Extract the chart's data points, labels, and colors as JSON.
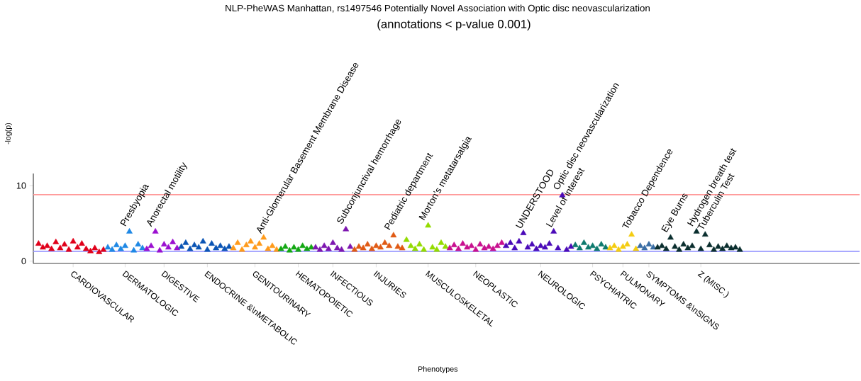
{
  "chart_data": {
    "type": "scatter",
    "title": "NLP-PheWAS Manhattan, rs1497546 Potentially Novel Association with Optic disc neovascularization",
    "subtitle": "(annotations < p-value 0.001)",
    "xlabel": "Phenotypes",
    "ylabel": "-log(p)",
    "marker": "triangle",
    "grid": false,
    "ylim": [
      -0.3,
      11.6
    ],
    "yticks": [
      0,
      10
    ],
    "categories": [
      null,
      null,
      null,
      null,
      null,
      null,
      null,
      null,
      "CARDIOVASCULAR",
      null,
      null,
      null,
      null,
      null,
      null,
      null,
      null,
      null,
      null,
      null,
      "DERMATOLOGIC",
      null,
      null,
      null,
      null,
      null,
      null,
      null,
      null,
      "DIGESTIVE",
      null,
      null,
      null,
      null,
      null,
      null,
      null,
      null,
      null,
      "ENDOCRINE &\\nMETABOLIC",
      null,
      null,
      null,
      null,
      null,
      null,
      null,
      null,
      null,
      null,
      "GENITOURINARY",
      null,
      null,
      null,
      null,
      null,
      null,
      null,
      null,
      null,
      "HEMATOPOIETIC",
      null,
      null,
      null,
      null,
      null,
      null,
      null,
      "INFECTIOUS",
      null,
      null,
      null,
      null,
      null,
      null,
      null,
      null,
      null,
      "INJURIES",
      null,
      null,
      null,
      null,
      null,
      null,
      null,
      null,
      null,
      null,
      null,
      "MUSCULOSKELETAL",
      null,
      null,
      null,
      null,
      null,
      null,
      null,
      null,
      null,
      null,
      "NEOPLASTIC",
      null,
      null,
      null,
      null,
      null,
      null,
      null,
      null,
      null,
      null,
      null,
      null,
      null,
      null,
      "NEUROLOGIC",
      null,
      null,
      null,
      null,
      null,
      null,
      null,
      null,
      null,
      null,
      null,
      "PSYCHIATRIC",
      null,
      null,
      null,
      null,
      null,
      null,
      "PULMONARY",
      null,
      null,
      null,
      null,
      null,
      "SYMPTOMS &\\nSIGNS",
      null,
      null,
      null,
      null,
      null,
      null,
      null,
      null,
      null,
      null,
      null,
      "Z (MISC.)",
      null,
      null,
      null,
      null,
      null,
      null,
      null,
      null,
      null
    ],
    "ref_lines": [
      {
        "axis": "y",
        "value": 8.8,
        "color": "#ff9999"
      },
      {
        "axis": "y",
        "value": 1.3,
        "color": "#9999ff"
      }
    ],
    "values": [
      2.3,
      1.8,
      2.0,
      1.6,
      2.5,
      1.7,
      2.2,
      1.5,
      2.6,
      1.8,
      2.3,
      1.6,
      1.3,
      1.7,
      1.2,
      1.5,
      1.8,
      1.5,
      2.1,
      1.6,
      2.0,
      3.9,
      1.4,
      2.2,
      1.7,
      1.6,
      2.0,
      3.9,
      1.4,
      2.2,
      1.8,
      2.5,
      1.7,
      1.9,
      2.4,
      1.6,
      2.1,
      1.8,
      2.6,
      1.5,
      2.3,
      1.7,
      2.0,
      1.6,
      1.9,
      1.7,
      2.4,
      1.5,
      2.1,
      2.6,
      1.8,
      2.3,
      3.1,
      1.6,
      2.0,
      1.5,
      1.6,
      1.9,
      1.4,
      1.8,
      1.5,
      2.0,
      1.6,
      1.8,
      1.8,
      1.5,
      2.0,
      1.6,
      2.4,
      1.7,
      1.5,
      4.2,
      1.9,
      1.5,
      1.9,
      1.7,
      2.2,
      1.6,
      2.0,
      1.8,
      2.4,
      2.0,
      3.4,
      1.9,
      1.7,
      2.8,
      2.0,
      1.6,
      2.2,
      1.5,
      4.7,
      1.8,
      1.5,
      2.4,
      1.9,
      1.7,
      2.1,
      1.6,
      2.3,
      1.8,
      2.0,
      1.5,
      2.2,
      1.7,
      1.9,
      1.6,
      2.0,
      2.4,
      2.0,
      2.4,
      1.7,
      2.6,
      3.7,
      1.8,
      2.2,
      1.6,
      2.0,
      1.8,
      2.3,
      3.9,
      1.7,
      8.7,
      1.5,
      1.9,
      2.1,
      1.7,
      2.4,
      1.8,
      2.0,
      1.6,
      2.2,
      1.8,
      1.7,
      2.0,
      1.5,
      1.9,
      2.2,
      3.5,
      1.6,
      2.0,
      1.7,
      2.2,
      1.8,
      1.8,
      2.0,
      1.6,
      3.1,
      1.9,
      1.5,
      2.2,
      1.7,
      2.0,
      3.9,
      1.6,
      3.5,
      2.1,
      1.5,
      1.9,
      1.6,
      2.0,
      1.7,
      1.8,
      1.5
    ],
    "colors": [
      "#e0001a",
      "#e0001a",
      "#e0001a",
      "#e0001a",
      "#e0001a",
      "#e0001a",
      "#e0001a",
      "#e0001a",
      "#e0001a",
      "#e0001a",
      "#e0001a",
      "#e0001a",
      "#e0001a",
      "#e0001a",
      "#e0001a",
      "#e0001a",
      "#1e88e5",
      "#1e88e5",
      "#1e88e5",
      "#1e88e5",
      "#1e88e5",
      "#1e88e5",
      "#1e88e5",
      "#1e88e5",
      "#1e88e5",
      "#9b10d0",
      "#9b10d0",
      "#9b10d0",
      "#9b10d0",
      "#9b10d0",
      "#9b10d0",
      "#9b10d0",
      "#9b10d0",
      "#0b55b5",
      "#0b55b5",
      "#0b55b5",
      "#0b55b5",
      "#0b55b5",
      "#0b55b5",
      "#0b55b5",
      "#0b55b5",
      "#0b55b5",
      "#0b55b5",
      "#0b55b5",
      "#0b55b5",
      "#ff9a1a",
      "#ff9a1a",
      "#ff9a1a",
      "#ff9a1a",
      "#ff9a1a",
      "#ff9a1a",
      "#ff9a1a",
      "#ff9a1a",
      "#ff9a1a",
      "#ff9a1a",
      "#ff9a1a",
      "#13a813",
      "#13a813",
      "#13a813",
      "#13a813",
      "#13a813",
      "#13a813",
      "#13a813",
      "#13a813",
      "#7d16b0",
      "#7d16b0",
      "#7d16b0",
      "#7d16b0",
      "#7d16b0",
      "#7d16b0",
      "#7d16b0",
      "#7d16b0",
      "#7d16b0",
      "#e05a14",
      "#e05a14",
      "#e05a14",
      "#e05a14",
      "#e05a14",
      "#e05a14",
      "#e05a14",
      "#e05a14",
      "#e05a14",
      "#e05a14",
      "#e05a14",
      "#e05a14",
      "#94db00",
      "#94db00",
      "#94db00",
      "#94db00",
      "#94db00",
      "#94db00",
      "#94db00",
      "#94db00",
      "#94db00",
      "#94db00",
      "#c8108f",
      "#c8108f",
      "#c8108f",
      "#c8108f",
      "#c8108f",
      "#c8108f",
      "#c8108f",
      "#c8108f",
      "#c8108f",
      "#c8108f",
      "#c8108f",
      "#c8108f",
      "#c8108f",
      "#4a0ab8",
      "#4a0ab8",
      "#4a0ab8",
      "#4a0ab8",
      "#4a0ab8",
      "#4a0ab8",
      "#4a0ab8",
      "#4a0ab8",
      "#4a0ab8",
      "#4a0ab8",
      "#4a0ab8",
      "#4a0ab8",
      "#4a0ab8",
      "#4a0ab8",
      "#4a0ab8",
      "#4a0ab8",
      "#0e7a6e",
      "#0e7a6e",
      "#0e7a6e",
      "#0e7a6e",
      "#0e7a6e",
      "#0e7a6e",
      "#0e7a6e",
      "#0e7a6e",
      "#f4cc10",
      "#f4cc10",
      "#f4cc10",
      "#f4cc10",
      "#f4cc10",
      "#f4cc10",
      "#f4cc10",
      "#3a6ea5",
      "#3a6ea5",
      "#3a6ea5",
      "#3a6ea5",
      "#0a2e2e",
      "#0a2e2e",
      "#0a2e2e",
      "#0a2e2e",
      "#0a2e2e",
      "#0a2e2e",
      "#0a2e2e",
      "#0a2e2e",
      "#0a2e2e",
      "#0a2e2e",
      "#0a2e2e",
      "#0a2e2e",
      "#0a2e2e",
      "#0a2e2e",
      "#0a2e2e",
      "#0a2e2e",
      "#0a2e2e",
      "#0a2e2e",
      "#0a2e2e",
      "#0a2e2e"
    ],
    "annotations": [
      "Presbyopia",
      "Anorectal motility",
      "Anti-Glomerular Basement Membrane Disease",
      "Subconjunctival hemorrhage",
      "Pediatric department",
      "Morton's metatarsalgia",
      "UNDERSTOOD",
      "Level of interest",
      "Optic disc neovascularization",
      "Tobacco Dependence",
      "Eye Burns",
      "Hydrogen breath test",
      "Tuberculin Test"
    ]
  }
}
